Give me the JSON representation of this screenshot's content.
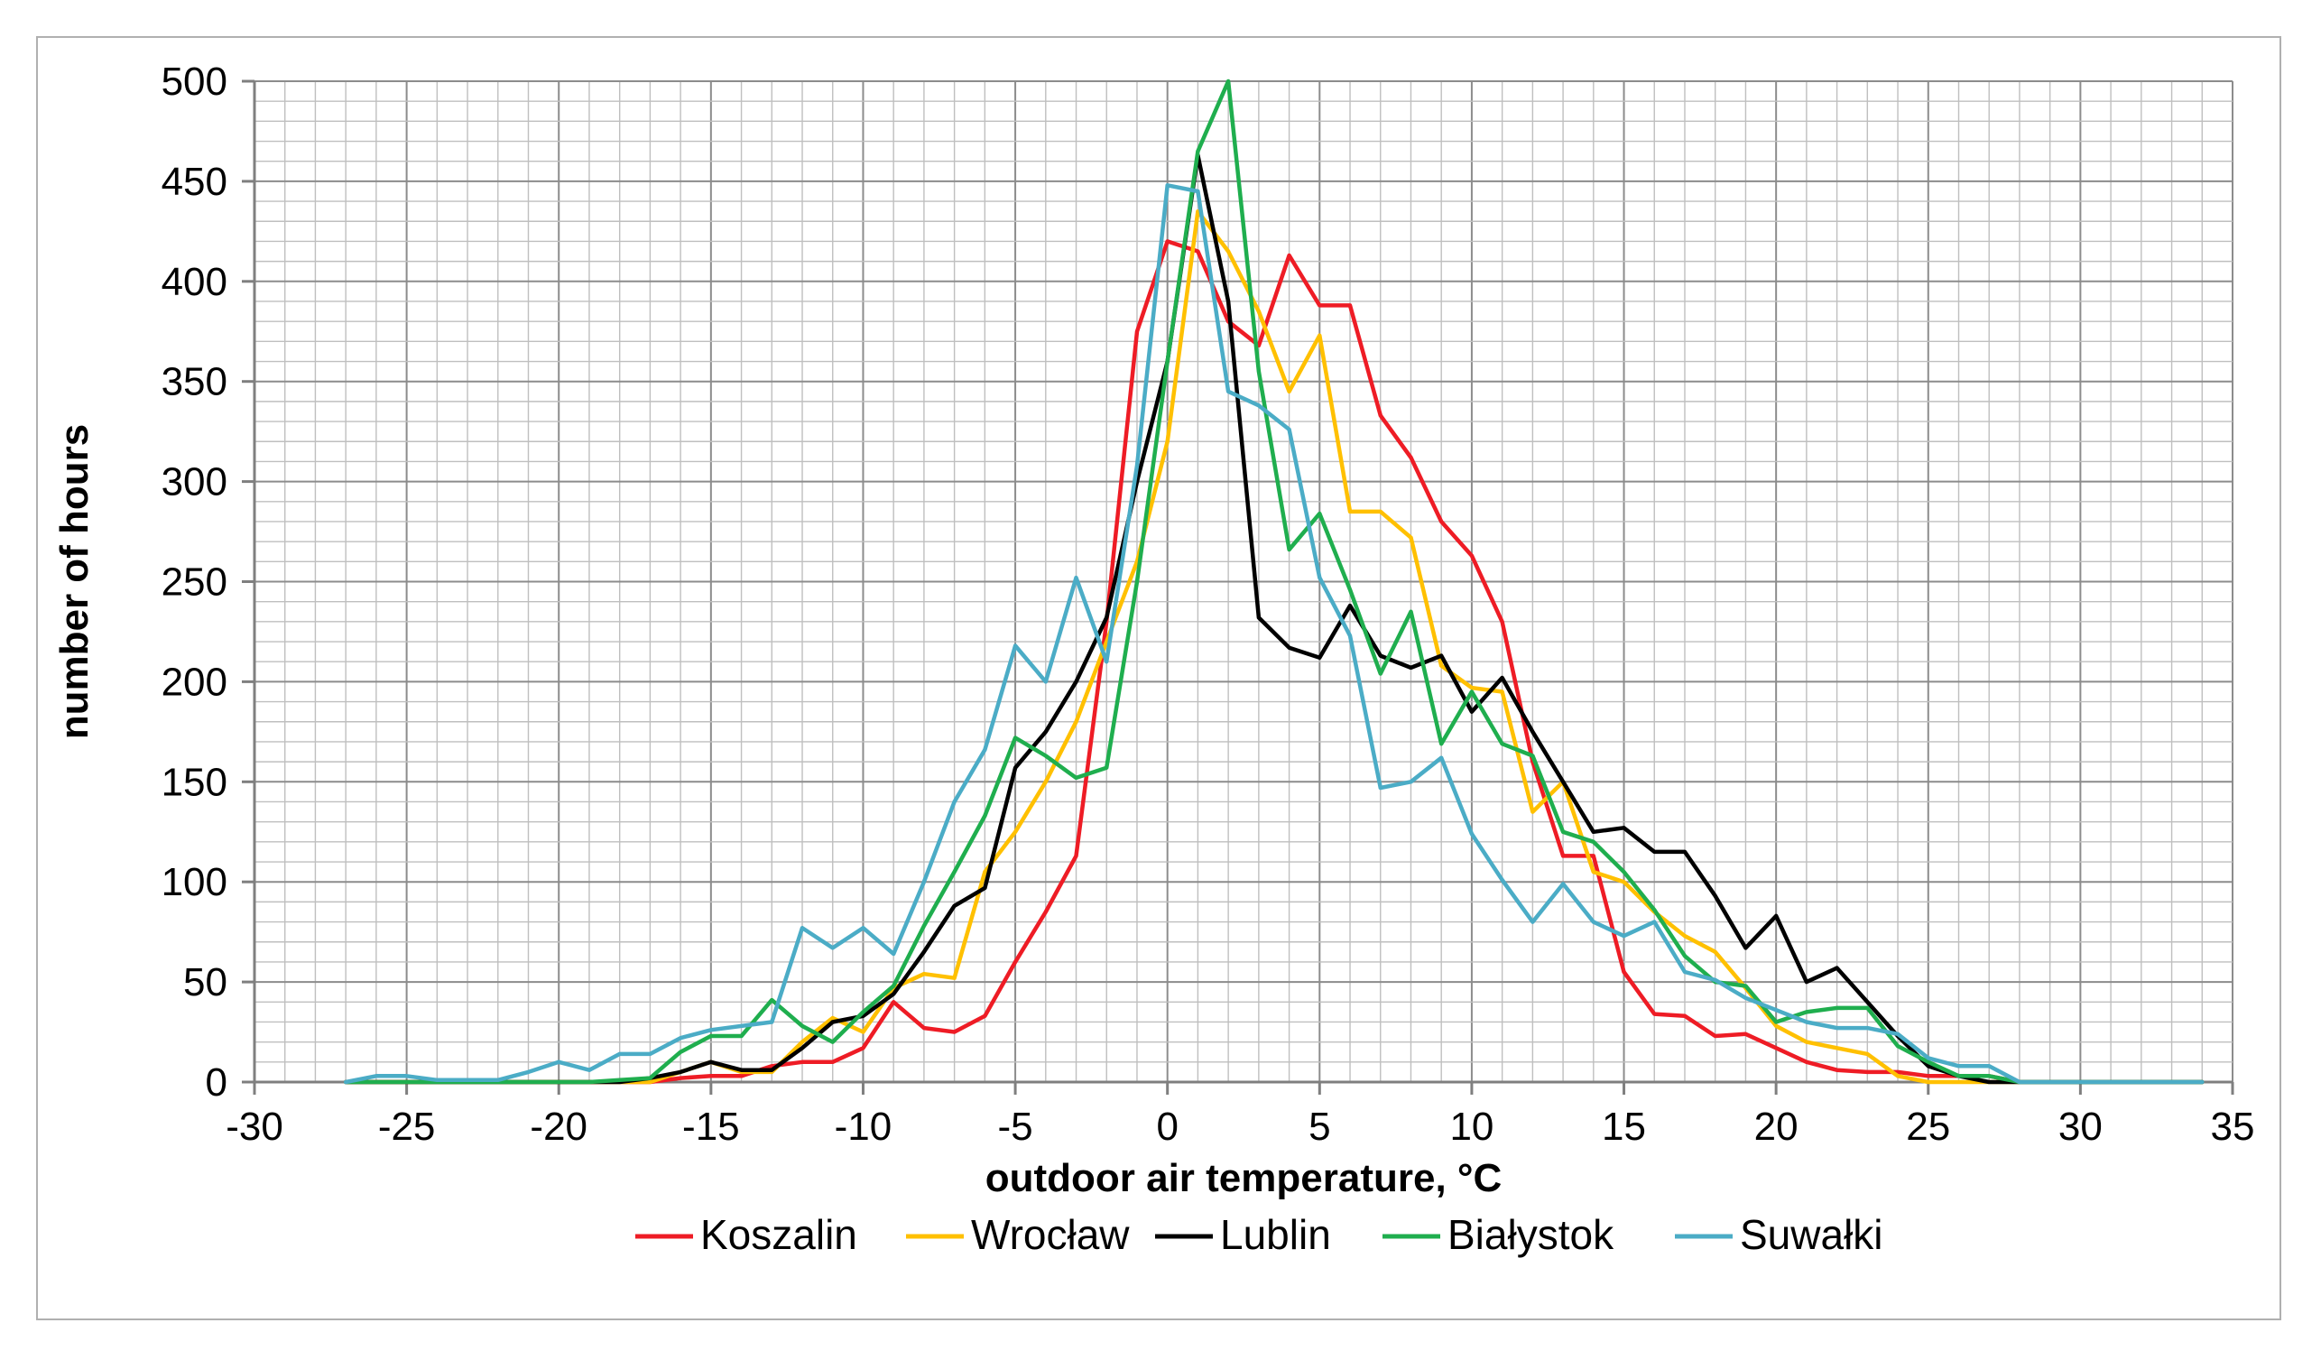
{
  "chart_data": {
    "type": "line",
    "title": "",
    "xlabel": "outdoor air temperature, °C",
    "ylabel": "number of hours",
    "xlim": [
      -30,
      35
    ],
    "ylim": [
      0,
      500
    ],
    "x_major_ticks": [
      -30,
      -25,
      -20,
      -15,
      -10,
      -5,
      0,
      5,
      10,
      15,
      20,
      25,
      30,
      35
    ],
    "y_major_ticks": [
      0,
      50,
      100,
      150,
      200,
      250,
      300,
      350,
      400,
      450,
      500
    ],
    "grid": true,
    "legend_position": "bottom",
    "x": [
      -27,
      -26,
      -25,
      -24,
      -23,
      -22,
      -21,
      -20,
      -19,
      -18,
      -17,
      -16,
      -15,
      -14,
      -13,
      -12,
      -11,
      -10,
      -9,
      -8,
      -7,
      -6,
      -5,
      -4,
      -3,
      -2,
      -1,
      0,
      1,
      2,
      3,
      4,
      5,
      6,
      7,
      8,
      9,
      10,
      11,
      12,
      13,
      14,
      15,
      16,
      17,
      18,
      19,
      20,
      21,
      22,
      23,
      24,
      25,
      26,
      27,
      28,
      29,
      30,
      31,
      32,
      33,
      34
    ],
    "series": [
      {
        "name": "Koszalin",
        "color": "#ee1c25",
        "values": [
          0,
          0,
          0,
          0,
          0,
          0,
          0,
          0,
          0,
          0,
          0,
          2,
          3,
          3,
          8,
          10,
          10,
          17,
          40,
          27,
          25,
          33,
          60,
          85,
          113,
          230,
          375,
          420,
          415,
          380,
          368,
          413,
          388,
          388,
          333,
          312,
          280,
          263,
          230,
          160,
          113,
          113,
          55,
          34,
          33,
          23,
          24,
          17,
          10,
          6,
          5,
          5,
          3,
          3,
          3,
          0,
          0,
          0,
          0,
          0,
          0,
          0
        ]
      },
      {
        "name": "Wrocław",
        "color": "#ffc000",
        "values": [
          0,
          0,
          0,
          0,
          0,
          0,
          0,
          0,
          0,
          0,
          0,
          5,
          10,
          5,
          5,
          20,
          32,
          25,
          47,
          54,
          52,
          105,
          125,
          150,
          180,
          220,
          260,
          320,
          435,
          415,
          385,
          345,
          373,
          285,
          285,
          272,
          208,
          197,
          195,
          135,
          150,
          105,
          100,
          85,
          73,
          65,
          47,
          28,
          20,
          17,
          14,
          3,
          0,
          0,
          0,
          0,
          0,
          0,
          0,
          0,
          0,
          0
        ]
      },
      {
        "name": "Lublin",
        "color": "#000000",
        "values": [
          0,
          0,
          0,
          0,
          0,
          0,
          0,
          0,
          0,
          0,
          2,
          5,
          10,
          6,
          6,
          17,
          30,
          33,
          44,
          65,
          88,
          97,
          157,
          175,
          200,
          232,
          300,
          360,
          463,
          390,
          232,
          217,
          212,
          238,
          213,
          207,
          213,
          185,
          202,
          175,
          150,
          125,
          127,
          115,
          115,
          93,
          67,
          83,
          50,
          57,
          40,
          23,
          8,
          3,
          0,
          0,
          0,
          0,
          0,
          0,
          0,
          0
        ]
      },
      {
        "name": "Białystok",
        "color": "#1fae4e",
        "values": [
          0,
          0,
          0,
          0,
          0,
          0,
          0,
          0,
          0,
          1,
          2,
          15,
          23,
          23,
          41,
          28,
          20,
          35,
          48,
          78,
          105,
          133,
          172,
          163,
          152,
          157,
          250,
          360,
          465,
          500,
          355,
          266,
          284,
          246,
          204,
          235,
          169,
          195,
          169,
          163,
          125,
          120,
          105,
          86,
          63,
          50,
          48,
          30,
          35,
          37,
          37,
          18,
          10,
          3,
          3,
          0,
          0,
          0,
          0,
          0,
          0,
          0
        ]
      },
      {
        "name": "Suwałki",
        "color": "#4bacc6",
        "values": [
          0,
          3,
          3,
          1,
          1,
          1,
          5,
          10,
          6,
          14,
          14,
          22,
          26,
          28,
          30,
          77,
          67,
          77,
          64,
          100,
          140,
          166,
          218,
          200,
          252,
          210,
          308,
          448,
          445,
          345,
          338,
          326,
          252,
          223,
          147,
          150,
          162,
          124,
          101,
          80,
          99,
          80,
          73,
          80,
          55,
          51,
          42,
          36,
          30,
          27,
          27,
          24,
          12,
          8,
          8,
          0,
          0,
          0,
          0,
          0,
          0,
          0
        ]
      }
    ]
  }
}
